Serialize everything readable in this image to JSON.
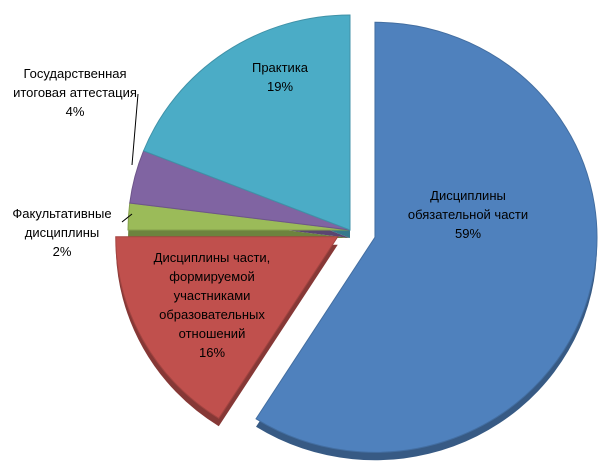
{
  "chart_data": {
    "type": "pie",
    "categories": [
      "Дисциплины\nобязательной части",
      "Дисциплины части,\nформируемой\nучастниками\nобразовательных\nотношений",
      "Факультативные\nдисциплины",
      "Государственная\nитоговая аттестация",
      "Практика"
    ],
    "values": [
      59,
      16,
      2,
      4,
      19
    ],
    "value_labels": [
      "59%",
      "16%",
      "2%",
      "4%",
      "19%"
    ],
    "colors": [
      "#4f81bd",
      "#c0504d",
      "#9bbb59",
      "#8064a2",
      "#4bacc6"
    ]
  }
}
